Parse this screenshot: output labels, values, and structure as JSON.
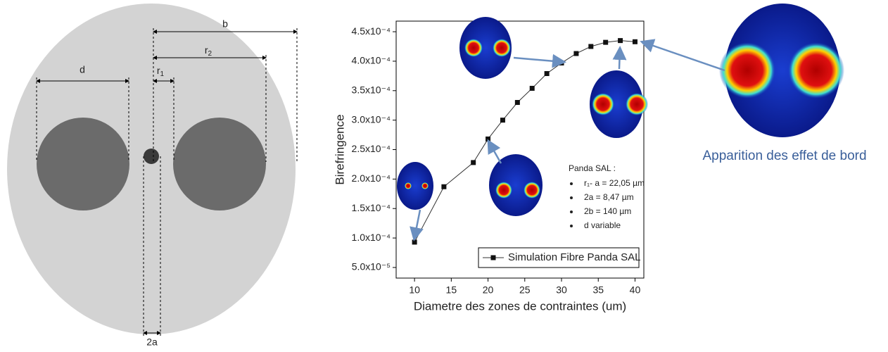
{
  "diagram": {
    "labels": {
      "b": "b",
      "r2": {
        "base": "r",
        "sub": "2"
      },
      "r1": {
        "base": "r",
        "sub": "1"
      },
      "d": "d",
      "two_a": "2a"
    }
  },
  "chart_data": {
    "type": "line",
    "x": [
      10,
      14,
      18,
      20,
      22,
      24,
      26,
      28,
      30,
      32,
      34,
      36,
      38,
      40
    ],
    "series": [
      {
        "name": "Simulation Fibre Panda SAL",
        "color": "#333333",
        "values": [
          9.3e-05,
          0.000187,
          0.000228,
          0.000268,
          0.0003,
          0.00033,
          0.000354,
          0.000379,
          0.000397,
          0.000413,
          0.000425,
          0.000432,
          0.000435,
          0.000433
        ]
      }
    ],
    "xlim": [
      7.5,
      41.2
    ],
    "ylim": [
      3.2e-05,
      0.000468
    ],
    "xticks": [
      10,
      15,
      20,
      25,
      30,
      35,
      40
    ],
    "yticks": [
      {
        "value": 5e-05,
        "label": "5.0x10⁻⁵"
      },
      {
        "value": 0.0001,
        "label": "1.0x10⁻⁴"
      },
      {
        "value": 0.00015,
        "label": "1.5x10⁻⁴"
      },
      {
        "value": 0.0002,
        "label": "2.0x10⁻⁴"
      },
      {
        "value": 0.00025,
        "label": "2.5x10⁻⁴"
      },
      {
        "value": 0.0003,
        "label": "3.0x10⁻⁴"
      },
      {
        "value": 0.00035,
        "label": "3.5x10⁻⁴"
      },
      {
        "value": 0.0004,
        "label": "4.0x10⁻⁴"
      },
      {
        "value": 0.00045,
        "label": "4.5x10⁻⁴"
      }
    ],
    "xlabel": "Diametre des zones de contraintes (um)",
    "ylabel": "Birefringence",
    "legend": "bottom-right",
    "annotation": {
      "title": "Panda SAL :",
      "items": [
        "r₁- a = 22,05 µm",
        "2a = 8,47 µm",
        "2b = 140 µm",
        "d variable"
      ]
    }
  },
  "caption": "Apparition des effet de bord"
}
